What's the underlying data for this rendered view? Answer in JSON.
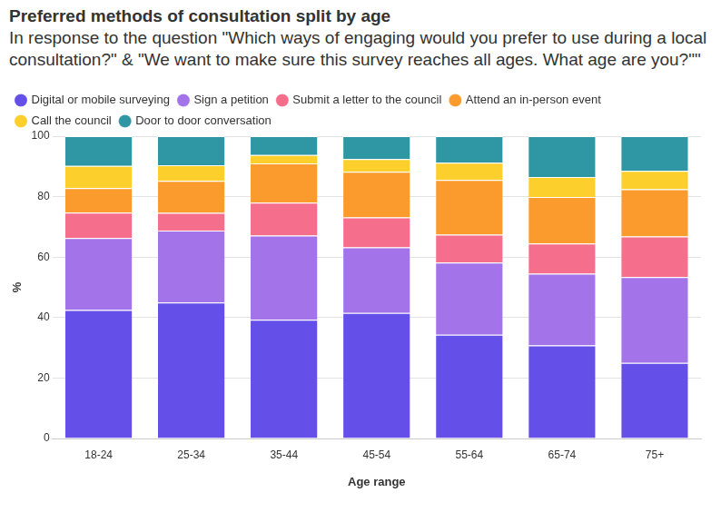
{
  "chart_data": {
    "type": "bar",
    "title": "Preferred methods of consultation split by age",
    "subtitle": "In response to the question \"Which ways of engaging would you prefer to use during a local consultation?\" & \"We want to make sure this survey reaches all ages. What age are you?\"\"",
    "x_label": "Age range",
    "y_label": "%",
    "categories": [
      "18-24",
      "25-34",
      "35-44",
      "45-54",
      "55-64",
      "65-74",
      "75+"
    ],
    "series": [
      {
        "name": "Digital or mobile surveying",
        "color": "#6450e8",
        "values": [
          42.5,
          45.0,
          39.3,
          41.5,
          34.3,
          30.8,
          25.0
        ]
      },
      {
        "name": "Sign a petition",
        "color": "#a373ea",
        "values": [
          23.8,
          23.8,
          27.8,
          21.7,
          23.9,
          23.7,
          28.4
        ]
      },
      {
        "name": "Submit a letter to the council",
        "color": "#f56f8c",
        "values": [
          8.4,
          5.8,
          10.9,
          9.9,
          9.2,
          10.0,
          13.4
        ]
      },
      {
        "name": "Attend an in-person event",
        "color": "#fb9b2e",
        "values": [
          8.1,
          10.6,
          13.0,
          15.1,
          18.1,
          15.4,
          15.6
        ]
      },
      {
        "name": "Call the council",
        "color": "#fdcf2c",
        "values": [
          7.4,
          5.2,
          2.8,
          4.2,
          5.7,
          6.6,
          6.1
        ]
      },
      {
        "name": "Door to door conversation",
        "color": "#2f96a4",
        "values": [
          9.8,
          9.6,
          6.2,
          7.6,
          8.8,
          13.5,
          11.5
        ]
      }
    ],
    "ylim": [
      0,
      100
    ],
    "yticks": [
      0,
      20,
      40,
      60,
      80,
      100
    ],
    "stacked": true,
    "grid": true,
    "legend": "top"
  }
}
